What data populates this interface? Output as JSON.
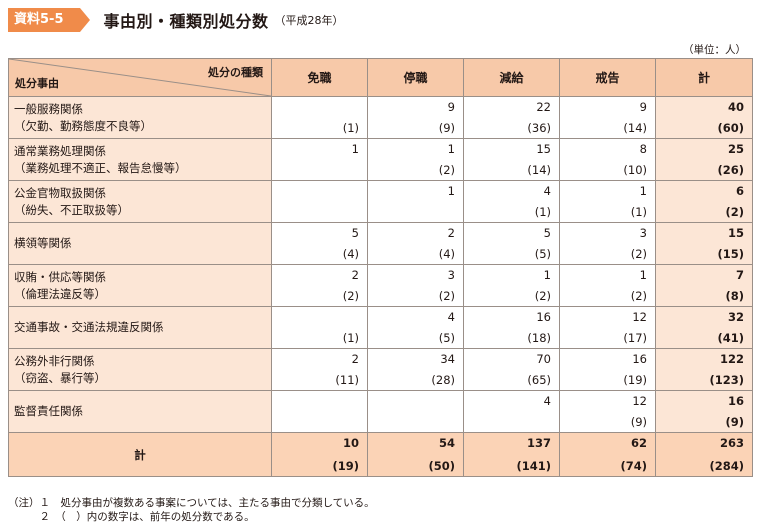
{
  "header": {
    "tag": "資料5-5",
    "title": "事由別・種類別処分数",
    "subtitle": "（平成28年）",
    "unit": "（単位：人）"
  },
  "table": {
    "corner_top": "処分の種類",
    "corner_bottom": "処分事由",
    "columns": [
      "免職",
      "停職",
      "減給",
      "戒告",
      "計"
    ],
    "rows": [
      {
        "line1": "一般服務関係",
        "line2": "（欠勤、勤務態度不良等）",
        "cells": [
          {
            "v": "",
            "p": "(1)"
          },
          {
            "v": "9",
            "p": "(9)"
          },
          {
            "v": "22",
            "p": "(36)"
          },
          {
            "v": "9",
            "p": "(14)"
          },
          {
            "v": "40",
            "p": "(60)"
          }
        ]
      },
      {
        "line1": "通常業務処理関係",
        "line2": "（業務処理不適正、報告怠慢等）",
        "cells": [
          {
            "v": "1",
            "p": ""
          },
          {
            "v": "1",
            "p": "(2)"
          },
          {
            "v": "15",
            "p": "(14)"
          },
          {
            "v": "8",
            "p": "(10)"
          },
          {
            "v": "25",
            "p": "(26)"
          }
        ]
      },
      {
        "line1": "公金官物取扱関係",
        "line2": "（紛失、不正取扱等）",
        "cells": [
          {
            "v": "",
            "p": ""
          },
          {
            "v": "1",
            "p": ""
          },
          {
            "v": "4",
            "p": "(1)"
          },
          {
            "v": "1",
            "p": "(1)"
          },
          {
            "v": "6",
            "p": "(2)"
          }
        ]
      },
      {
        "line1": "横領等関係",
        "line2": "",
        "cells": [
          {
            "v": "5",
            "p": "(4)"
          },
          {
            "v": "2",
            "p": "(4)"
          },
          {
            "v": "5",
            "p": "(5)"
          },
          {
            "v": "3",
            "p": "(2)"
          },
          {
            "v": "15",
            "p": "(15)"
          }
        ]
      },
      {
        "line1": "収賄・供応等関係",
        "line2": "（倫理法違反等）",
        "cells": [
          {
            "v": "2",
            "p": "(2)"
          },
          {
            "v": "3",
            "p": "(2)"
          },
          {
            "v": "1",
            "p": "(2)"
          },
          {
            "v": "1",
            "p": "(2)"
          },
          {
            "v": "7",
            "p": "(8)"
          }
        ]
      },
      {
        "line1": "交通事故・交通法規違反関係",
        "line2": "",
        "cells": [
          {
            "v": "",
            "p": "(1)"
          },
          {
            "v": "4",
            "p": "(5)"
          },
          {
            "v": "16",
            "p": "(18)"
          },
          {
            "v": "12",
            "p": "(17)"
          },
          {
            "v": "32",
            "p": "(41)"
          }
        ]
      },
      {
        "line1": "公務外非行関係",
        "line2": "（窃盗、暴行等）",
        "cells": [
          {
            "v": "2",
            "p": "(11)"
          },
          {
            "v": "34",
            "p": "(28)"
          },
          {
            "v": "70",
            "p": "(65)"
          },
          {
            "v": "16",
            "p": "(19)"
          },
          {
            "v": "122",
            "p": "(123)"
          }
        ]
      },
      {
        "line1": "監督責任関係",
        "line2": "",
        "cells": [
          {
            "v": "",
            "p": ""
          },
          {
            "v": "",
            "p": ""
          },
          {
            "v": "4",
            "p": ""
          },
          {
            "v": "12",
            "p": "(9)"
          },
          {
            "v": "16",
            "p": "(9)"
          }
        ]
      }
    ],
    "total": {
      "label": "計",
      "cells": [
        {
          "v": "10",
          "p": "(19)"
        },
        {
          "v": "54",
          "p": "(50)"
        },
        {
          "v": "137",
          "p": "(141)"
        },
        {
          "v": "62",
          "p": "(74)"
        },
        {
          "v": "263",
          "p": "(284)"
        }
      ]
    }
  },
  "notes": [
    "（注）１　処分事由が複数ある事案については、主たる事由で分類している。",
    "　　　２　（　）内の数字は、前年の処分数である。"
  ]
}
